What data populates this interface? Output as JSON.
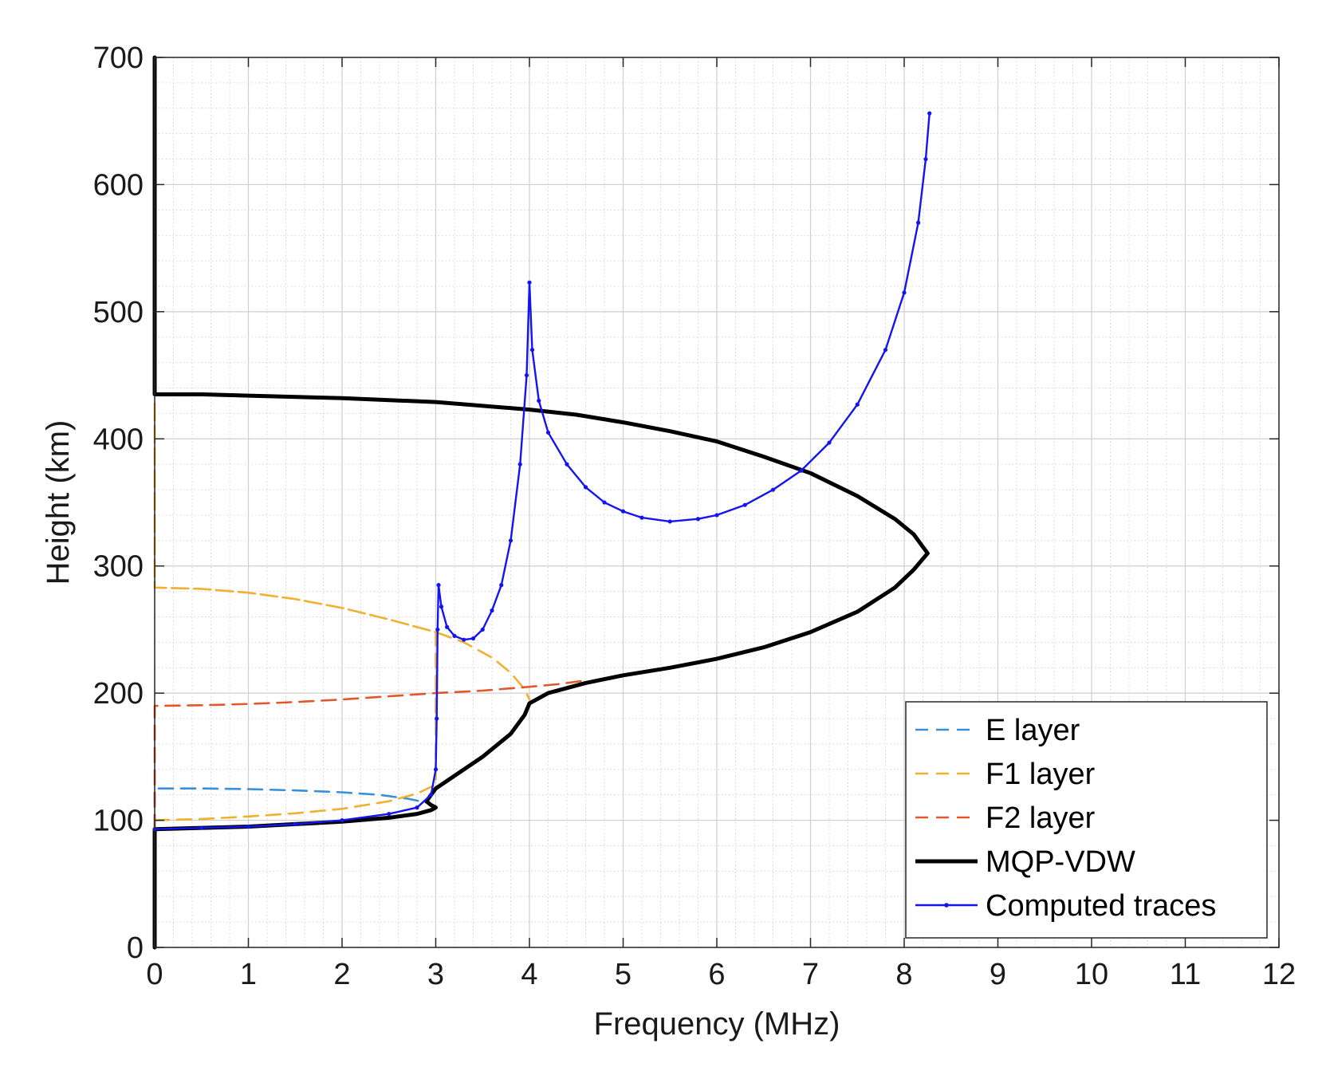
{
  "chart_data": {
    "type": "line",
    "title": "",
    "xlabel": "Frequency (MHz)",
    "ylabel": "Height (km)",
    "xlim": [
      0,
      12
    ],
    "ylim": [
      0,
      700
    ],
    "xticks": [
      0,
      1,
      2,
      3,
      4,
      5,
      6,
      7,
      8,
      9,
      10,
      11,
      12
    ],
    "yticks": [
      0,
      100,
      200,
      300,
      400,
      500,
      600,
      700
    ],
    "grid": true,
    "minor_grid": true,
    "legend_position": "bottom-right",
    "series": [
      {
        "name": "E layer",
        "style": "dashed",
        "color": "#3a8fd6",
        "points": [
          [
            0,
            93
          ],
          [
            0,
            125
          ],
          [
            0.5,
            125
          ],
          [
            1.0,
            124.5
          ],
          [
            1.5,
            123.5
          ],
          [
            2.0,
            122
          ],
          [
            2.4,
            120
          ],
          [
            2.7,
            117
          ],
          [
            2.9,
            114
          ],
          [
            3.0,
            110
          ]
        ]
      },
      {
        "name": "F1 layer",
        "style": "dashed",
        "color": "#f0b030",
        "points": [
          [
            0,
            100
          ],
          [
            0.5,
            101
          ],
          [
            1.0,
            103
          ],
          [
            1.5,
            105.5
          ],
          [
            2.0,
            109
          ],
          [
            2.5,
            115
          ],
          [
            2.8,
            121
          ],
          [
            3.0,
            128
          ],
          [
            3.0,
            248
          ],
          [
            2.5,
            258
          ],
          [
            2.0,
            267
          ],
          [
            1.5,
            274
          ],
          [
            1.0,
            279
          ],
          [
            0.5,
            282
          ],
          [
            0,
            283
          ],
          [
            0,
            430
          ],
          [
            0,
            283
          ],
          [
            0.5,
            282
          ],
          [
            1.0,
            279
          ],
          [
            1.5,
            274
          ],
          [
            2.0,
            267
          ],
          [
            2.5,
            258
          ],
          [
            3.0,
            248
          ],
          [
            3.3,
            240
          ],
          [
            3.6,
            228
          ],
          [
            3.8,
            216
          ],
          [
            3.95,
            203
          ],
          [
            4.0,
            195
          ]
        ]
      },
      {
        "name": "F2 layer",
        "style": "dashed",
        "color": "#e2572b",
        "points": [
          [
            0,
            93
          ],
          [
            0,
            190
          ],
          [
            0.5,
            190.5
          ],
          [
            1.0,
            191.5
          ],
          [
            1.5,
            193
          ],
          [
            2.0,
            195
          ],
          [
            2.5,
            197.5
          ],
          [
            3.0,
            200
          ],
          [
            3.5,
            202
          ],
          [
            4.0,
            205
          ],
          [
            4.3,
            207
          ],
          [
            4.6,
            210
          ]
        ]
      },
      {
        "name": "MQP-VDW",
        "style": "solid",
        "color": "#000000",
        "points": [
          [
            0,
            0
          ],
          [
            0,
            93
          ],
          [
            0.5,
            94
          ],
          [
            1.0,
            95
          ],
          [
            1.5,
            97
          ],
          [
            2.0,
            99
          ],
          [
            2.5,
            102
          ],
          [
            2.8,
            105
          ],
          [
            2.95,
            108
          ],
          [
            3.0,
            110
          ],
          [
            2.95,
            112
          ],
          [
            2.9,
            115
          ],
          [
            3.0,
            125
          ],
          [
            3.2,
            135
          ],
          [
            3.5,
            150
          ],
          [
            3.8,
            168
          ],
          [
            3.95,
            183
          ],
          [
            4.0,
            192
          ],
          [
            4.2,
            200
          ],
          [
            4.6,
            208
          ],
          [
            5.0,
            214
          ],
          [
            5.5,
            220
          ],
          [
            6.0,
            227
          ],
          [
            6.5,
            236
          ],
          [
            7.0,
            248
          ],
          [
            7.5,
            264
          ],
          [
            7.9,
            283
          ],
          [
            8.1,
            297
          ],
          [
            8.25,
            310
          ],
          [
            8.1,
            325
          ],
          [
            7.9,
            337
          ],
          [
            7.5,
            355
          ],
          [
            7.0,
            373
          ],
          [
            6.5,
            386
          ],
          [
            6.0,
            398
          ],
          [
            5.5,
            406
          ],
          [
            5.0,
            413
          ],
          [
            4.5,
            419
          ],
          [
            4.0,
            423
          ],
          [
            3.0,
            429
          ],
          [
            2.0,
            432
          ],
          [
            1.0,
            434
          ],
          [
            0.5,
            435
          ],
          [
            0,
            435
          ],
          [
            0,
            700
          ]
        ]
      },
      {
        "name": "Computed traces",
        "style": "solid-marker",
        "color": "#1414ee",
        "points": [
          [
            0,
            93
          ],
          [
            0.5,
            94
          ],
          [
            1.0,
            95
          ],
          [
            1.5,
            97
          ],
          [
            2.0,
            100
          ],
          [
            2.5,
            105
          ],
          [
            2.8,
            110
          ],
          [
            2.95,
            120
          ],
          [
            3.0,
            140
          ],
          [
            3.01,
            180
          ],
          [
            3.02,
            250
          ],
          [
            3.03,
            285
          ],
          [
            3.06,
            268
          ],
          [
            3.12,
            252
          ],
          [
            3.2,
            245
          ],
          [
            3.3,
            242
          ],
          [
            3.4,
            243
          ],
          [
            3.5,
            250
          ],
          [
            3.6,
            265
          ],
          [
            3.7,
            285
          ],
          [
            3.8,
            320
          ],
          [
            3.9,
            380
          ],
          [
            3.97,
            450
          ],
          [
            4.0,
            523
          ],
          [
            4.03,
            470
          ],
          [
            4.1,
            430
          ],
          [
            4.2,
            405
          ],
          [
            4.4,
            380
          ],
          [
            4.6,
            362
          ],
          [
            4.8,
            350
          ],
          [
            5.0,
            343
          ],
          [
            5.2,
            338
          ],
          [
            5.5,
            335
          ],
          [
            5.8,
            337
          ],
          [
            6.0,
            340
          ],
          [
            6.3,
            348
          ],
          [
            6.6,
            360
          ],
          [
            6.9,
            375
          ],
          [
            7.2,
            397
          ],
          [
            7.5,
            427
          ],
          [
            7.8,
            470
          ],
          [
            8.0,
            515
          ],
          [
            8.15,
            570
          ],
          [
            8.23,
            620
          ],
          [
            8.27,
            656
          ]
        ]
      }
    ]
  }
}
